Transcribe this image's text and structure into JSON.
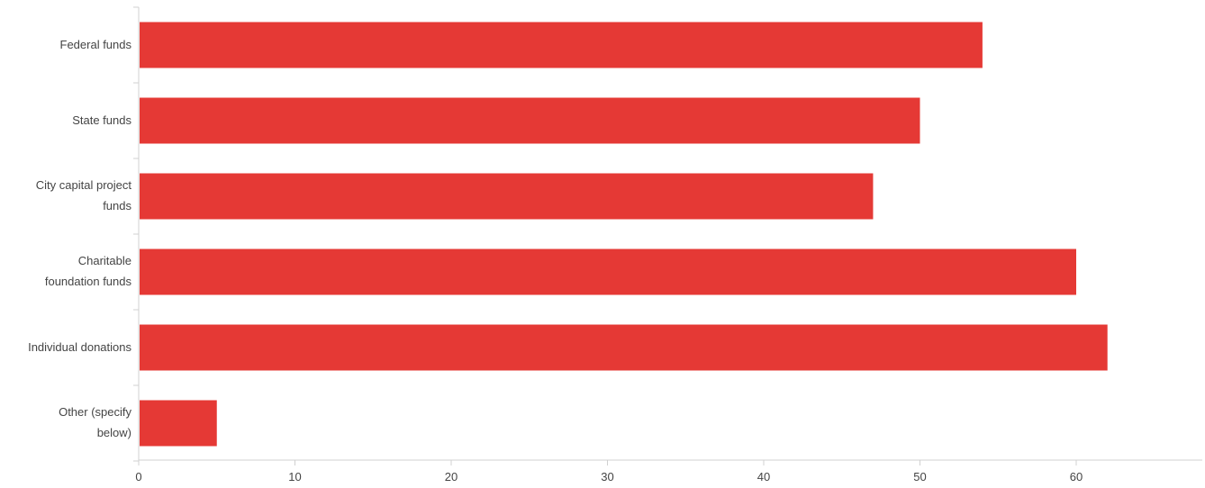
{
  "chart_data": {
    "type": "bar",
    "orientation": "horizontal",
    "categories": [
      "Federal funds",
      "State funds",
      "City capital project funds",
      "Charitable foundation funds",
      "Individual donations",
      "Other (specify below)"
    ],
    "category_label_lines": [
      [
        "Federal funds"
      ],
      [
        "State funds"
      ],
      [
        "City capital project",
        "funds"
      ],
      [
        "Charitable",
        "foundation funds"
      ],
      [
        "Individual donations"
      ],
      [
        "Other (specify",
        "below)"
      ]
    ],
    "values": [
      54,
      50,
      47,
      60,
      62,
      5
    ],
    "xlim": [
      0,
      68
    ],
    "xticks": [
      "0",
      "10",
      "20",
      "30",
      "40",
      "50",
      "60"
    ],
    "title": "",
    "xlabel": "",
    "ylabel": "",
    "grid": false,
    "bar_color": "#e53935",
    "axis_color": "#d0d0d0",
    "label_color": "#444444"
  }
}
